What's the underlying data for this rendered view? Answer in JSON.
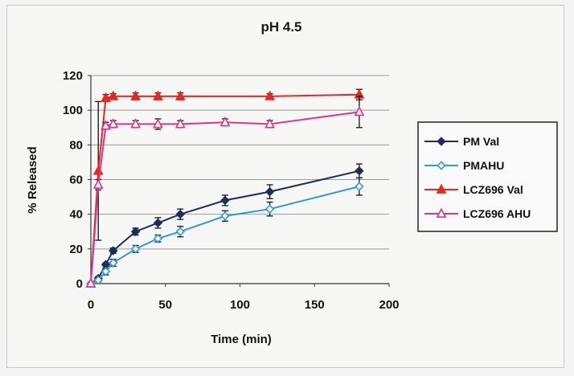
{
  "chart_data": {
    "type": "line",
    "title": "pH 4.5",
    "xlabel": "Time (min)",
    "ylabel": "% Released",
    "xlim": [
      0,
      200
    ],
    "ylim": [
      0,
      120
    ],
    "xticks": [
      0,
      50,
      100,
      150,
      200
    ],
    "yticks": [
      0,
      20,
      40,
      60,
      80,
      100,
      120
    ],
    "grid": "horizontal",
    "legend_position": "right",
    "series": [
      {
        "name": "PM Val",
        "color": "#1f2d5c",
        "marker": "filled-diamond",
        "x": [
          0,
          5,
          10,
          15,
          30,
          45,
          60,
          90,
          120,
          180
        ],
        "y": [
          0,
          3,
          11,
          19,
          30,
          35,
          40,
          48,
          53,
          65
        ],
        "err": [
          0,
          1,
          1,
          1.5,
          2,
          3,
          3,
          3,
          4,
          4
        ]
      },
      {
        "name": "PMAHU",
        "color": "#2f9ad6",
        "marker": "open-diamond",
        "x": [
          0,
          5,
          10,
          15,
          30,
          45,
          60,
          90,
          120,
          180
        ],
        "y": [
          0,
          2,
          7,
          12,
          20,
          26,
          30,
          39,
          43,
          56
        ],
        "err": [
          0,
          1,
          2,
          2,
          2,
          2,
          3,
          3,
          4,
          5
        ]
      },
      {
        "name": "LCZ696 Val",
        "color": "#e8281f",
        "marker": "filled-triangle",
        "x": [
          0,
          5,
          10,
          15,
          30,
          45,
          60,
          120,
          180
        ],
        "y": [
          0,
          65,
          107,
          108,
          108,
          108,
          108,
          108,
          109
        ],
        "err": [
          0,
          40,
          2,
          1.5,
          2,
          2,
          2,
          1.5,
          3
        ]
      },
      {
        "name": "LCZ696 AHU",
        "color": "#d9368a",
        "marker": "open-triangle",
        "x": [
          0,
          5,
          10,
          15,
          30,
          45,
          60,
          90,
          120,
          180
        ],
        "y": [
          0,
          57,
          91,
          92,
          92,
          92,
          92,
          93,
          92,
          99
        ],
        "err": [
          0,
          3,
          2,
          2,
          2,
          3,
          2,
          2,
          2,
          9
        ]
      }
    ]
  }
}
